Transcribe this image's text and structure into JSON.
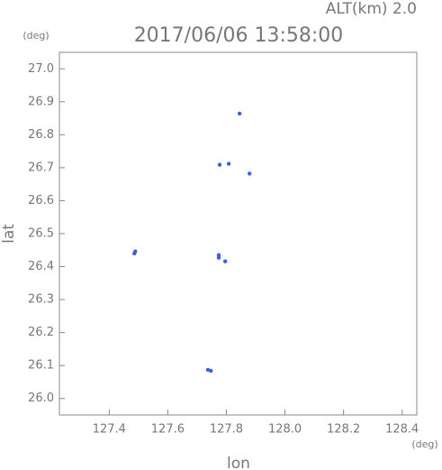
{
  "chart_data": {
    "type": "scatter",
    "title": "2017/06/06 13:58:00",
    "subtitle": "ALT(km) 2.0",
    "xlabel": "lon",
    "ylabel": "lat",
    "xunit": "(deg)",
    "yunit": "(deg)",
    "color": "#3a5fe0",
    "x": [
      127.879,
      127.808,
      127.777,
      127.845,
      127.489,
      127.486,
      127.774,
      127.774,
      127.796,
      127.737,
      127.747
    ],
    "values": [
      26.682,
      26.712,
      26.709,
      26.864,
      26.446,
      26.44,
      26.435,
      26.427,
      26.416,
      26.087,
      26.084
    ],
    "xlim": [
      127.23,
      128.45
    ],
    "ylim": [
      25.95,
      27.05
    ],
    "xticks": [
      127.4,
      127.6,
      127.8,
      {
        "value": 128,
        "label": "128.0"
      },
      128.2,
      128.4
    ],
    "yticks": [
      {
        "value": 26,
        "label": "26.0"
      },
      26.1,
      26.2,
      26.3,
      26.4,
      26.5,
      26.6,
      26.7,
      26.8,
      26.9,
      {
        "value": 27,
        "label": "27.0"
      }
    ]
  }
}
